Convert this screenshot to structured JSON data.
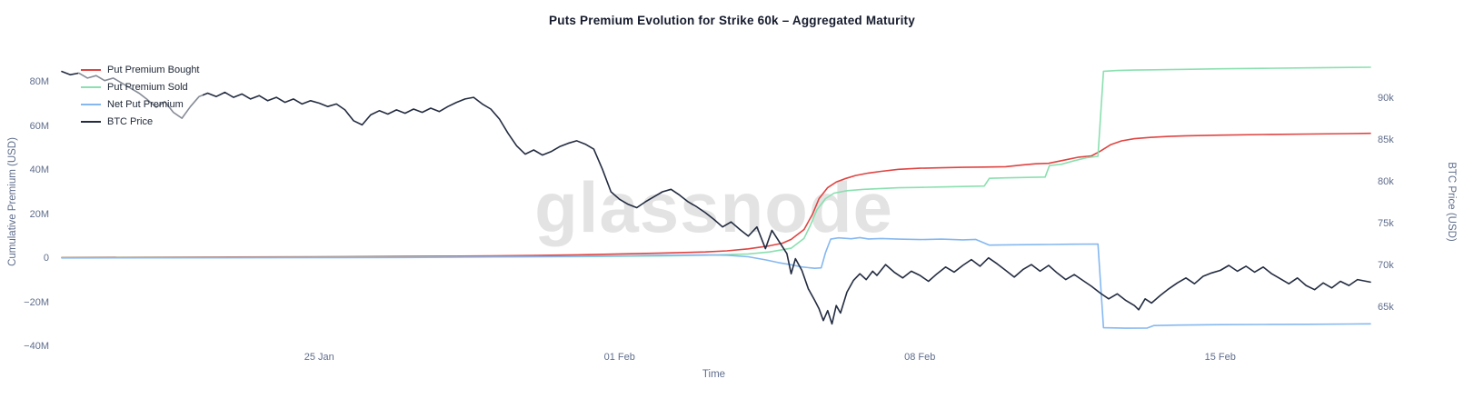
{
  "title": "Puts Premium Evolution for Strike 60k – Aggregated Maturity",
  "watermark": "glassnode",
  "chart_data": {
    "type": "line",
    "title": "Puts Premium Evolution for Strike 60k – Aggregated Maturity",
    "grid": false,
    "legend_position": "top-left",
    "x_axis": {
      "label": "Time",
      "unit": "days (0 = 19 Jan)",
      "range": [
        0,
        30.5
      ],
      "ticks": [
        {
          "pos": 6,
          "label": "25 Jan"
        },
        {
          "pos": 13,
          "label": "01 Feb"
        },
        {
          "pos": 20,
          "label": "08 Feb"
        },
        {
          "pos": 27,
          "label": "15 Feb"
        }
      ]
    },
    "left_axis": {
      "label": "Cumulative Premium (USD)",
      "unit": "USD, millions",
      "range": [
        -42,
        92
      ],
      "ticks": [
        {
          "value": 80,
          "label": "80M"
        },
        {
          "value": 60,
          "label": "60M"
        },
        {
          "value": 40,
          "label": "40M"
        },
        {
          "value": 20,
          "label": "20M"
        },
        {
          "value": 0,
          "label": "0"
        },
        {
          "value": -20,
          "label": "−20M"
        },
        {
          "value": -40,
          "label": "−40M"
        }
      ]
    },
    "right_axis": {
      "label": "BTC Price (USD)",
      "unit": "USD, thousands",
      "range": [
        60.5,
        95.2
      ],
      "ticks": [
        {
          "value": 90,
          "label": "90k"
        },
        {
          "value": 85,
          "label": "85k"
        },
        {
          "value": 80,
          "label": "80k"
        },
        {
          "value": 75,
          "label": "75k"
        },
        {
          "value": 70,
          "label": "70k"
        },
        {
          "value": 65,
          "label": "65k"
        }
      ]
    },
    "series": [
      {
        "name": "Put Premium Bought",
        "axis": "left",
        "unit": "M USD",
        "color": "#df4442",
        "points": [
          [
            0,
            0.3
          ],
          [
            2,
            0.4
          ],
          [
            4,
            0.5
          ],
          [
            6,
            0.6
          ],
          [
            8,
            0.8
          ],
          [
            10,
            1.0
          ],
          [
            11,
            1.2
          ],
          [
            12,
            1.5
          ],
          [
            13,
            1.9
          ],
          [
            14,
            2.3
          ],
          [
            15,
            2.8
          ],
          [
            15.5,
            3.3
          ],
          [
            16,
            4.2
          ],
          [
            16.5,
            5.6
          ],
          [
            16.8,
            6.8
          ],
          [
            17.0,
            8.5
          ],
          [
            17.3,
            13
          ],
          [
            17.5,
            20
          ],
          [
            17.65,
            27
          ],
          [
            17.85,
            32
          ],
          [
            18.05,
            34.5
          ],
          [
            18.25,
            36.0
          ],
          [
            18.5,
            37.5
          ],
          [
            18.8,
            38.6
          ],
          [
            19.1,
            39.4
          ],
          [
            19.5,
            40.3
          ],
          [
            20,
            40.8
          ],
          [
            20.5,
            41.0
          ],
          [
            21,
            41.2
          ],
          [
            21.5,
            41.3
          ],
          [
            22,
            41.5
          ],
          [
            22.4,
            42.3
          ],
          [
            22.7,
            42.8
          ],
          [
            23,
            43.0
          ],
          [
            23.4,
            44.6
          ],
          [
            23.7,
            45.8
          ],
          [
            24,
            46.4
          ],
          [
            24.2,
            48.5
          ],
          [
            24.45,
            51.5
          ],
          [
            24.7,
            53.2
          ],
          [
            25,
            54.2
          ],
          [
            25.4,
            54.8
          ],
          [
            25.8,
            55.2
          ],
          [
            26.2,
            55.5
          ],
          [
            27,
            55.8
          ],
          [
            28,
            56.1
          ],
          [
            29,
            56.3
          ],
          [
            30,
            56.5
          ],
          [
            30.5,
            56.6
          ]
        ]
      },
      {
        "name": "Put Premium Sold",
        "axis": "left",
        "unit": "M USD",
        "color": "#8ae0b0",
        "points": [
          [
            0,
            0.2
          ],
          [
            4,
            0.3
          ],
          [
            8,
            0.45
          ],
          [
            12,
            0.7
          ],
          [
            14,
            1.0
          ],
          [
            15,
            1.3
          ],
          [
            16,
            1.9
          ],
          [
            16.5,
            2.8
          ],
          [
            17,
            4.5
          ],
          [
            17.3,
            9
          ],
          [
            17.45,
            15
          ],
          [
            17.6,
            22
          ],
          [
            17.8,
            27
          ],
          [
            18.0,
            29.5
          ],
          [
            18.3,
            30.6
          ],
          [
            18.7,
            31.2
          ],
          [
            19.1,
            31.6
          ],
          [
            19.5,
            31.9
          ],
          [
            20,
            32.1
          ],
          [
            20.5,
            32.3
          ],
          [
            21,
            32.5
          ],
          [
            21.5,
            32.7
          ],
          [
            21.62,
            36.2
          ],
          [
            22,
            36.4
          ],
          [
            22.5,
            36.6
          ],
          [
            22.92,
            36.8
          ],
          [
            23.02,
            42.0
          ],
          [
            23.3,
            42.6
          ],
          [
            23.6,
            44.2
          ],
          [
            23.9,
            45.6
          ],
          [
            24.15,
            46.2
          ],
          [
            24.28,
            84.8
          ],
          [
            24.6,
            85.1
          ],
          [
            25,
            85.3
          ],
          [
            26,
            85.6
          ],
          [
            27,
            85.9
          ],
          [
            28,
            86.1
          ],
          [
            29,
            86.3
          ],
          [
            30,
            86.5
          ],
          [
            30.5,
            86.6
          ]
        ]
      },
      {
        "name": "Net Put Premium",
        "axis": "left",
        "unit": "M USD",
        "color": "#85b8f0",
        "points": [
          [
            0,
            0.1
          ],
          [
            4,
            0.15
          ],
          [
            8,
            0.3
          ],
          [
            12,
            0.8
          ],
          [
            13,
            1.0
          ],
          [
            14,
            1.3
          ],
          [
            15,
            1.5
          ],
          [
            15.5,
            1.3
          ],
          [
            16,
            0.6
          ],
          [
            16.4,
            -0.8
          ],
          [
            16.7,
            -2.0
          ],
          [
            17.0,
            -3.0
          ],
          [
            17.25,
            -4.0
          ],
          [
            17.55,
            -4.6
          ],
          [
            17.7,
            -4.4
          ],
          [
            17.8,
            2.5
          ],
          [
            17.92,
            8.6
          ],
          [
            18.1,
            9.2
          ],
          [
            18.4,
            8.8
          ],
          [
            18.6,
            9.3
          ],
          [
            18.8,
            8.7
          ],
          [
            19.1,
            8.9
          ],
          [
            19.5,
            8.6
          ],
          [
            20,
            8.4
          ],
          [
            20.5,
            8.6
          ],
          [
            21,
            8.3
          ],
          [
            21.3,
            8.5
          ],
          [
            21.62,
            5.9
          ],
          [
            22,
            6.0
          ],
          [
            22.5,
            6.1
          ],
          [
            23,
            6.2
          ],
          [
            23.5,
            6.3
          ],
          [
            24.15,
            6.4
          ],
          [
            24.28,
            -31.6
          ],
          [
            24.8,
            -31.8
          ],
          [
            25.3,
            -31.7
          ],
          [
            25.45,
            -30.6
          ],
          [
            26,
            -30.4
          ],
          [
            27,
            -30.2
          ],
          [
            28,
            -30.1
          ],
          [
            29,
            -30.0
          ],
          [
            30,
            -29.9
          ],
          [
            30.5,
            -29.8
          ]
        ]
      },
      {
        "name": "BTC Price",
        "axis": "right",
        "unit": "k USD",
        "color": "#232c41",
        "points": [
          [
            0,
            93.2
          ],
          [
            0.2,
            92.8
          ],
          [
            0.4,
            93.0
          ],
          [
            0.6,
            92.4
          ],
          [
            0.8,
            92.7
          ],
          [
            1.0,
            92.1
          ],
          [
            1.2,
            92.4
          ],
          [
            1.4,
            91.8
          ],
          [
            1.6,
            91.2
          ],
          [
            1.8,
            90.6
          ],
          [
            2.0,
            89.8
          ],
          [
            2.2,
            88.9
          ],
          [
            2.4,
            89.6
          ],
          [
            2.6,
            88.3
          ],
          [
            2.8,
            87.6
          ],
          [
            3.0,
            89.0
          ],
          [
            3.2,
            90.2
          ],
          [
            3.4,
            90.6
          ],
          [
            3.6,
            90.2
          ],
          [
            3.8,
            90.7
          ],
          [
            4.0,
            90.1
          ],
          [
            4.2,
            90.5
          ],
          [
            4.4,
            89.9
          ],
          [
            4.6,
            90.3
          ],
          [
            4.8,
            89.7
          ],
          [
            5.0,
            90.1
          ],
          [
            5.2,
            89.5
          ],
          [
            5.4,
            89.9
          ],
          [
            5.6,
            89.3
          ],
          [
            5.8,
            89.7
          ],
          [
            6.0,
            89.4
          ],
          [
            6.2,
            89.0
          ],
          [
            6.4,
            89.3
          ],
          [
            6.6,
            88.6
          ],
          [
            6.8,
            87.3
          ],
          [
            7.0,
            86.8
          ],
          [
            7.2,
            88.0
          ],
          [
            7.4,
            88.5
          ],
          [
            7.6,
            88.1
          ],
          [
            7.8,
            88.6
          ],
          [
            8.0,
            88.2
          ],
          [
            8.2,
            88.7
          ],
          [
            8.4,
            88.3
          ],
          [
            8.6,
            88.8
          ],
          [
            8.8,
            88.4
          ],
          [
            9.0,
            89.0
          ],
          [
            9.2,
            89.5
          ],
          [
            9.4,
            89.9
          ],
          [
            9.6,
            90.1
          ],
          [
            9.8,
            89.3
          ],
          [
            10.0,
            88.7
          ],
          [
            10.2,
            87.5
          ],
          [
            10.4,
            85.8
          ],
          [
            10.6,
            84.3
          ],
          [
            10.8,
            83.3
          ],
          [
            11.0,
            83.8
          ],
          [
            11.2,
            83.2
          ],
          [
            11.4,
            83.6
          ],
          [
            11.6,
            84.2
          ],
          [
            11.8,
            84.6
          ],
          [
            12.0,
            84.9
          ],
          [
            12.2,
            84.5
          ],
          [
            12.4,
            83.9
          ],
          [
            12.6,
            81.5
          ],
          [
            12.8,
            78.8
          ],
          [
            13.0,
            77.9
          ],
          [
            13.2,
            77.3
          ],
          [
            13.4,
            76.9
          ],
          [
            13.6,
            77.6
          ],
          [
            13.8,
            78.2
          ],
          [
            14.0,
            78.8
          ],
          [
            14.2,
            79.1
          ],
          [
            14.4,
            78.4
          ],
          [
            14.6,
            77.6
          ],
          [
            14.8,
            77.0
          ],
          [
            15.0,
            76.3
          ],
          [
            15.2,
            75.5
          ],
          [
            15.4,
            74.6
          ],
          [
            15.6,
            75.2
          ],
          [
            15.8,
            74.3
          ],
          [
            16.0,
            73.5
          ],
          [
            16.2,
            74.6
          ],
          [
            16.4,
            72.0
          ],
          [
            16.55,
            74.2
          ],
          [
            16.7,
            73.0
          ],
          [
            16.9,
            71.4
          ],
          [
            17.0,
            69.0
          ],
          [
            17.1,
            70.8
          ],
          [
            17.25,
            69.4
          ],
          [
            17.4,
            67.2
          ],
          [
            17.55,
            65.8
          ],
          [
            17.65,
            64.8
          ],
          [
            17.75,
            63.4
          ],
          [
            17.85,
            64.6
          ],
          [
            17.95,
            63.0
          ],
          [
            18.05,
            65.2
          ],
          [
            18.15,
            64.3
          ],
          [
            18.3,
            66.8
          ],
          [
            18.45,
            68.2
          ],
          [
            18.6,
            69.0
          ],
          [
            18.75,
            68.3
          ],
          [
            18.9,
            69.3
          ],
          [
            19.0,
            68.8
          ],
          [
            19.2,
            70.1
          ],
          [
            19.4,
            69.2
          ],
          [
            19.6,
            68.5
          ],
          [
            19.8,
            69.3
          ],
          [
            20.0,
            68.8
          ],
          [
            20.2,
            68.1
          ],
          [
            20.4,
            69.0
          ],
          [
            20.6,
            69.8
          ],
          [
            20.8,
            69.2
          ],
          [
            21.0,
            70.0
          ],
          [
            21.2,
            70.7
          ],
          [
            21.4,
            69.9
          ],
          [
            21.6,
            70.9
          ],
          [
            21.8,
            70.2
          ],
          [
            22.0,
            69.4
          ],
          [
            22.2,
            68.6
          ],
          [
            22.4,
            69.5
          ],
          [
            22.6,
            70.1
          ],
          [
            22.8,
            69.3
          ],
          [
            23.0,
            70.0
          ],
          [
            23.2,
            69.1
          ],
          [
            23.4,
            68.3
          ],
          [
            23.6,
            68.9
          ],
          [
            23.8,
            68.2
          ],
          [
            24.0,
            67.5
          ],
          [
            24.2,
            66.7
          ],
          [
            24.4,
            66.0
          ],
          [
            24.6,
            66.6
          ],
          [
            24.8,
            65.8
          ],
          [
            25.0,
            65.2
          ],
          [
            25.1,
            64.7
          ],
          [
            25.25,
            66.0
          ],
          [
            25.4,
            65.5
          ],
          [
            25.6,
            66.4
          ],
          [
            25.8,
            67.2
          ],
          [
            26.0,
            67.9
          ],
          [
            26.2,
            68.5
          ],
          [
            26.4,
            67.8
          ],
          [
            26.6,
            68.7
          ],
          [
            26.8,
            69.1
          ],
          [
            27.0,
            69.4
          ],
          [
            27.2,
            70.0
          ],
          [
            27.4,
            69.3
          ],
          [
            27.6,
            69.9
          ],
          [
            27.8,
            69.2
          ],
          [
            28.0,
            69.8
          ],
          [
            28.2,
            69.0
          ],
          [
            28.4,
            68.4
          ],
          [
            28.6,
            67.8
          ],
          [
            28.8,
            68.5
          ],
          [
            29.0,
            67.6
          ],
          [
            29.2,
            67.1
          ],
          [
            29.4,
            67.9
          ],
          [
            29.6,
            67.3
          ],
          [
            29.8,
            68.1
          ],
          [
            30.0,
            67.6
          ],
          [
            30.2,
            68.3
          ],
          [
            30.5,
            68.0
          ]
        ]
      }
    ]
  }
}
